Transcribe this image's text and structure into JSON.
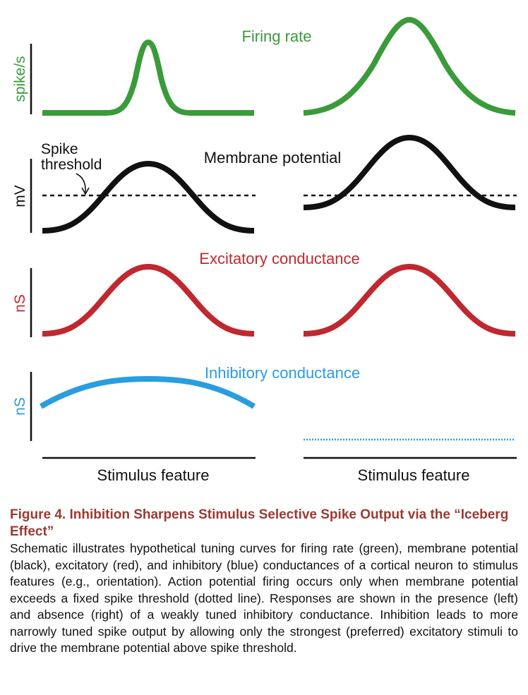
{
  "figure": {
    "colors": {
      "firing": "#3a9b3a",
      "membrane": "#111111",
      "excitatory": "#c0282f",
      "inhibitory": "#2a9de0",
      "axis": "#111111"
    },
    "panels": {
      "firing_rate": {
        "title": "Firing rate",
        "ylabel": "spike/s"
      },
      "membrane_potential": {
        "title": "Membrane potential",
        "ylabel": "mV",
        "annotation": "Spike threshold",
        "annotation_line1": "Spike",
        "annotation_line2": "threshold"
      },
      "excitatory": {
        "title": "Excitatory conductance",
        "ylabel": "nS"
      },
      "inhibitory": {
        "title": "Inhibitory conductance",
        "ylabel": "nS"
      }
    },
    "xlabel_left": "Stimulus feature",
    "xlabel_right": "Stimulus feature"
  },
  "caption": {
    "title": "Figure 4.  Inhibition Sharpens Stimulus Selective Spike Output via the “Iceberg Effect”",
    "body": "Schematic illustrates hypothetical tuning curves for firing rate (green), membrane potential (black), excitatory (red), and inhibitory (blue) conductances of a cortical neuron to stimulus features (e.g., orientation). Action potential firing occurs only when membrane potential exceeds a fixed spike threshold (dotted line). Responses are shown in the presence (left) and absence (right) of a weakly tuned inhibitory conductance. Inhibition leads to more narrowly tuned spike output by allowing only the strongest (preferred) excitatory stimuli to drive the membrane potential above spike threshold."
  }
}
